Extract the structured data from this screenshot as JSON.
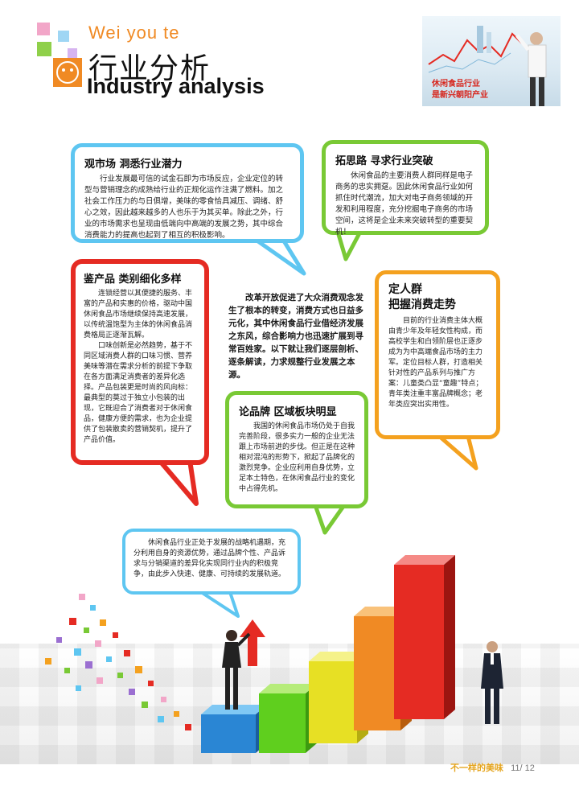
{
  "header": {
    "brand": "Wei you te",
    "title_cn": "行业分析",
    "title_en": "Industry analysis"
  },
  "photo": {
    "caption_line1": "休闲食品行业",
    "caption_line2": "是新兴朝阳产业"
  },
  "sections": {
    "market": {
      "heading": "观市场  洞悉行业潜力",
      "body": "行业发展最可信的试金石即为市场反应，企业定位的转型与营销理念的成熟给行业的正规化运作注满了燃料。加之社会工作压力的与日俱增，美味的零食恰具减压、调绪、舒心之效，因此越来越多的人也乐于为其买单。除此之外，行业的市场需求也呈现由低端向中高端的发展之势，其中综合消费能力的提高也起到了相互的积极影响。"
    },
    "expand": {
      "heading": "拓思路  寻求行业突破",
      "body": "休闲食品的主要消费人群同样是电子商务的忠实拥趸。因此休闲食品行业如何抓住时代潮流，加大对电子商务领域的开发和利用程度，充分挖掘电子商务的市场空间，这将是企业未来突破转型的重要契机！"
    },
    "products": {
      "heading": "鉴产品  类别细化多样",
      "body1": "连锁经营以其便捷的服务、丰富的产品和实惠的价格，驱动中国休闲食品市场继续保持高速发展，以传统温饱型为主体的休闲食品消费格局正逐渐瓦解。",
      "body2": "口味创新是必然趋势，基于不同区域消费人群的口味习惯、营养美味等潜在需求分析的前提下争取在各方面满足消费者的差异化选择。产品包装更是时尚的风向标：最典型的莫过于独立小包装的出现，它既迎合了消费者对于休闲食品，健康方便的需求，也为企业提供了包装散卖的营销契机，提升了产品价值。"
    },
    "center": {
      "body": "改革开放促进了大众消费观念发生了根本的转变，消费方式也日益多元化，其中休闲食品行业借经济发展之东风，综合影响力也迅速扩展到寻常百姓家。以下就让我们逐层剖析、逐条解读，力求规整行业发展之本源。"
    },
    "brand": {
      "heading": "论品牌  区域板块明显",
      "body": "我国的休闲食品市场仍处于自我完善阶段，很多实力一般的企业无法跟上市场前进的步伐。但正是在这种相对混沌的形势下，掀起了品牌化的激烈竞争。企业应利用自身优势，立足本土特色，在休闲食品行业的变化中占得先机。"
    },
    "people": {
      "heading_line1": "定人群",
      "heading_line2": "把握消费走势",
      "body": "目前的行业消费主体大概由青少年及年轻女性构成，而高校学生和白领阶层也正逐步成为为中高端食品市场的主力军。定位目标人群，打造相关针对性的产品系列与推广方案：儿童类凸显“童趣”特点；青年类注重丰富品牌概念；老年类应突出实用性。"
    },
    "summary": {
      "body": "休闲食品行业正处于发展的战略机遇期，充分利用自身的资源优势，通过品牌个性、产品诉求与分销渠道的差异化实现同行业内的积极竞争，由此步入快速、健康、可持续的发展轨道。"
    }
  },
  "colors": {
    "blue": "#5ec6f1",
    "green": "#79c935",
    "red": "#e52b23",
    "orange": "#f4a11f",
    "brand_orange": "#f08a24"
  },
  "footer": {
    "slogan": "不一样的美味",
    "page": "11/ 12"
  }
}
